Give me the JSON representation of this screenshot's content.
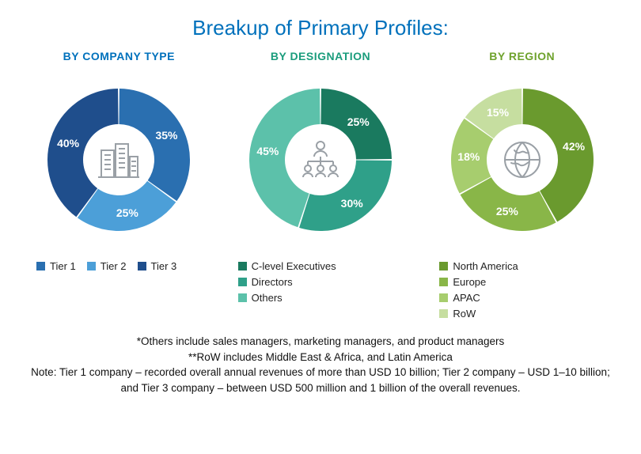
{
  "title": "Breakup of Primary Profiles:",
  "title_color": "#0071bc",
  "background_color": "#ffffff",
  "label_color": "#ffffff",
  "label_fontsize": 14,
  "donut": {
    "outer_radius": 90,
    "inner_radius": 45,
    "gap_deg": 1.2,
    "start_angle_deg": -90
  },
  "charts": [
    {
      "id": "company-type",
      "subtitle": "BY COMPANY TYPE",
      "subtitle_color": "#0071bc",
      "icon": "buildings",
      "slices": [
        {
          "label": "Tier 1",
          "value": 35,
          "color": "#2a6fb0",
          "display": "35%"
        },
        {
          "label": "Tier 2",
          "value": 25,
          "color": "#4c9fd8",
          "display": "25%"
        },
        {
          "label": "Tier 3",
          "value": 40,
          "color": "#1f4e8c",
          "display": "40%"
        }
      ],
      "legend_layout": "inline"
    },
    {
      "id": "designation",
      "subtitle": "BY DESIGNATION",
      "subtitle_color": "#1a9c7c",
      "icon": "org",
      "slices": [
        {
          "label": "C-level Executives",
          "value": 25,
          "color": "#1a7a5f",
          "display": "25%"
        },
        {
          "label": "Directors",
          "value": 30,
          "color": "#2fa089",
          "display": "30%"
        },
        {
          "label": "Others",
          "value": 45,
          "color": "#5cc1aa",
          "display": "45%"
        }
      ],
      "legend_layout": "stack"
    },
    {
      "id": "region",
      "subtitle": "BY REGION",
      "subtitle_color": "#6ea22c",
      "icon": "globe",
      "slices": [
        {
          "label": "North America",
          "value": 42,
          "color": "#6a9a2e",
          "display": "42%"
        },
        {
          "label": "Europe",
          "value": 25,
          "color": "#89b648",
          "display": "25%"
        },
        {
          "label": "APAC",
          "value": 18,
          "color": "#a7cd6e",
          "display": "18%"
        },
        {
          "label": "RoW",
          "value": 15,
          "color": "#c6dea0",
          "display": "15%"
        }
      ],
      "legend_layout": "stack"
    }
  ],
  "footnotes": [
    "*Others include sales managers, marketing managers, and product managers",
    "**RoW includes Middle East & Africa, and Latin America",
    "Note: Tier 1 company – recorded overall annual revenues of more than USD 10 billion; Tier 2 company – USD 1–10 billion; and Tier 3 company – between USD 500 million and 1 billion of the overall revenues."
  ],
  "icon_stroke": "#9aa0a6"
}
